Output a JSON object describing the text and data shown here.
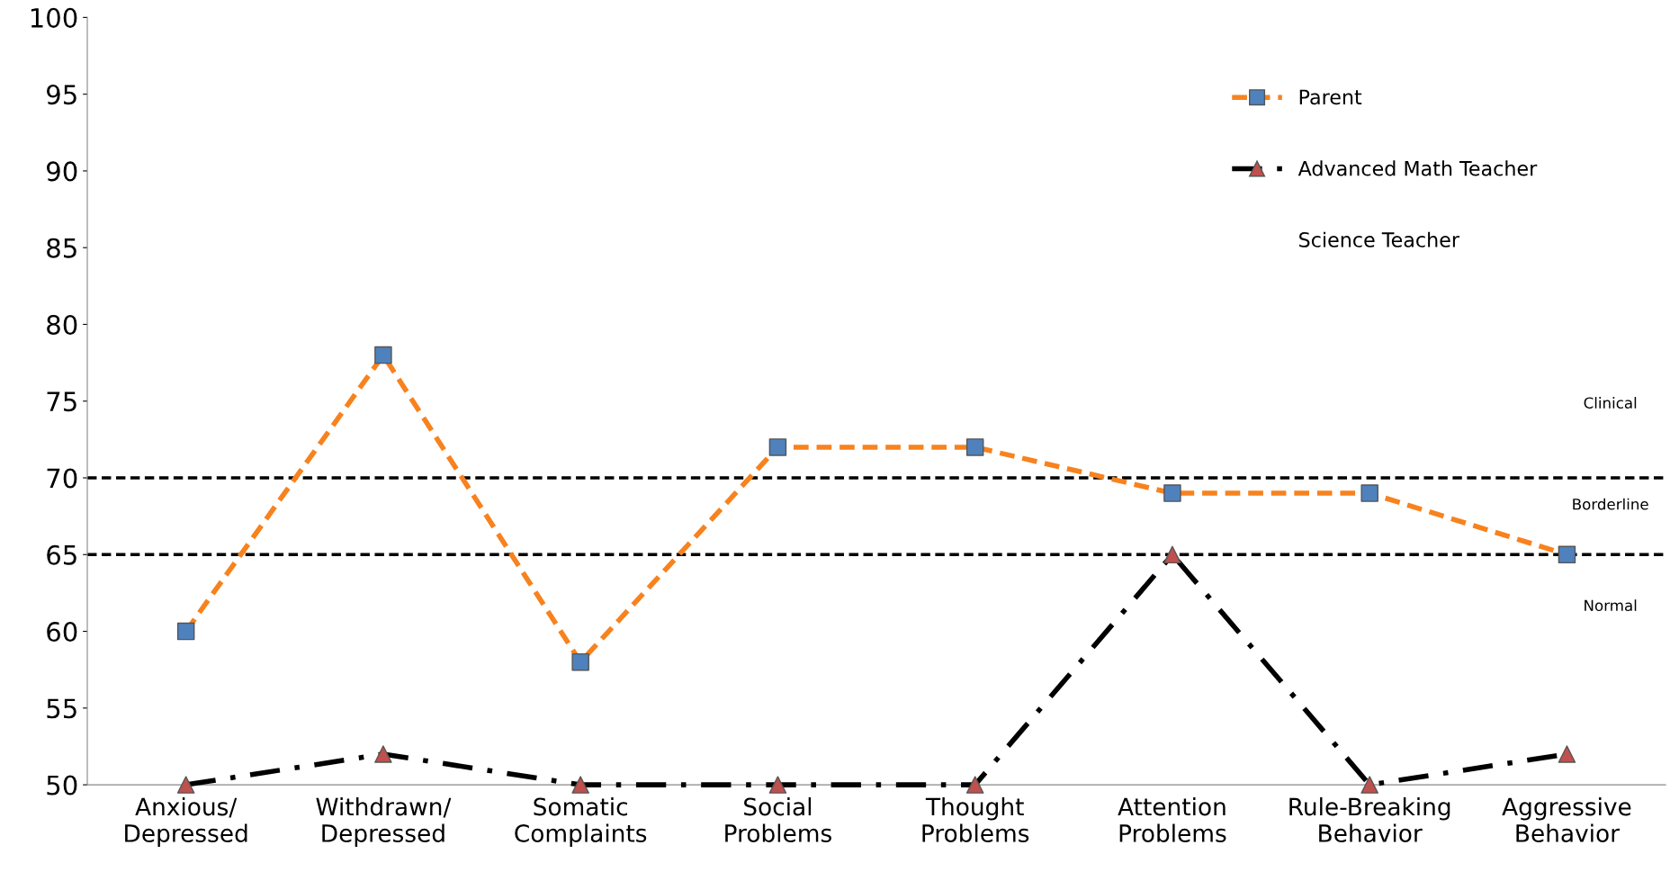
{
  "chart_data": {
    "type": "line",
    "categories": [
      "Anxious/\nDepressed",
      "Withdrawn/\nDepressed",
      "Somatic\nComplaints",
      "Social\nProblems",
      "Thought\nProblems",
      "Attention\nProblems",
      "Rule-Breaking\nBehavior",
      "Aggressive\nBehavior"
    ],
    "series": [
      {
        "name": "Parent",
        "color": "#f7821e",
        "colors": [
          "#4f81bd",
          "#4f81bd",
          "#4f81bd",
          "#4f81bd",
          "#4f81bd",
          "#4f81bd",
          "#4f81bd",
          "#4f81bd"
        ],
        "marker": "square",
        "line_style": "dashed",
        "values": [
          60,
          78,
          58,
          72,
          72,
          69,
          69,
          65
        ]
      },
      {
        "name": "Advanced Math Teacher",
        "color": "#000000",
        "colors": [
          "#c0504d",
          "#c0504d",
          "#c0504d",
          "#c0504d",
          "#c0504d",
          "#c0504d",
          "#c0504d",
          "#c0504d"
        ],
        "marker": "triangle",
        "line_style": "dashdot",
        "values": [
          50,
          52,
          50,
          50,
          50,
          65,
          50,
          52
        ]
      },
      {
        "name": "Science Teacher",
        "values": [
          null,
          null,
          null,
          null,
          null,
          null,
          null,
          null
        ]
      }
    ],
    "ylim": [
      50,
      100
    ],
    "yticks": [
      50,
      55,
      60,
      65,
      70,
      75,
      80,
      85,
      90,
      95,
      100
    ],
    "ref_lines": [
      {
        "axis": "y",
        "value": 70,
        "color": "#000000",
        "line_style": "dashed"
      },
      {
        "axis": "y",
        "value": 65,
        "color": "#000000",
        "line_style": "dashed"
      }
    ],
    "annotations": [
      "Clinical",
      "Borderline",
      "Normal"
    ],
    "grid": false,
    "legend": "top right"
  }
}
